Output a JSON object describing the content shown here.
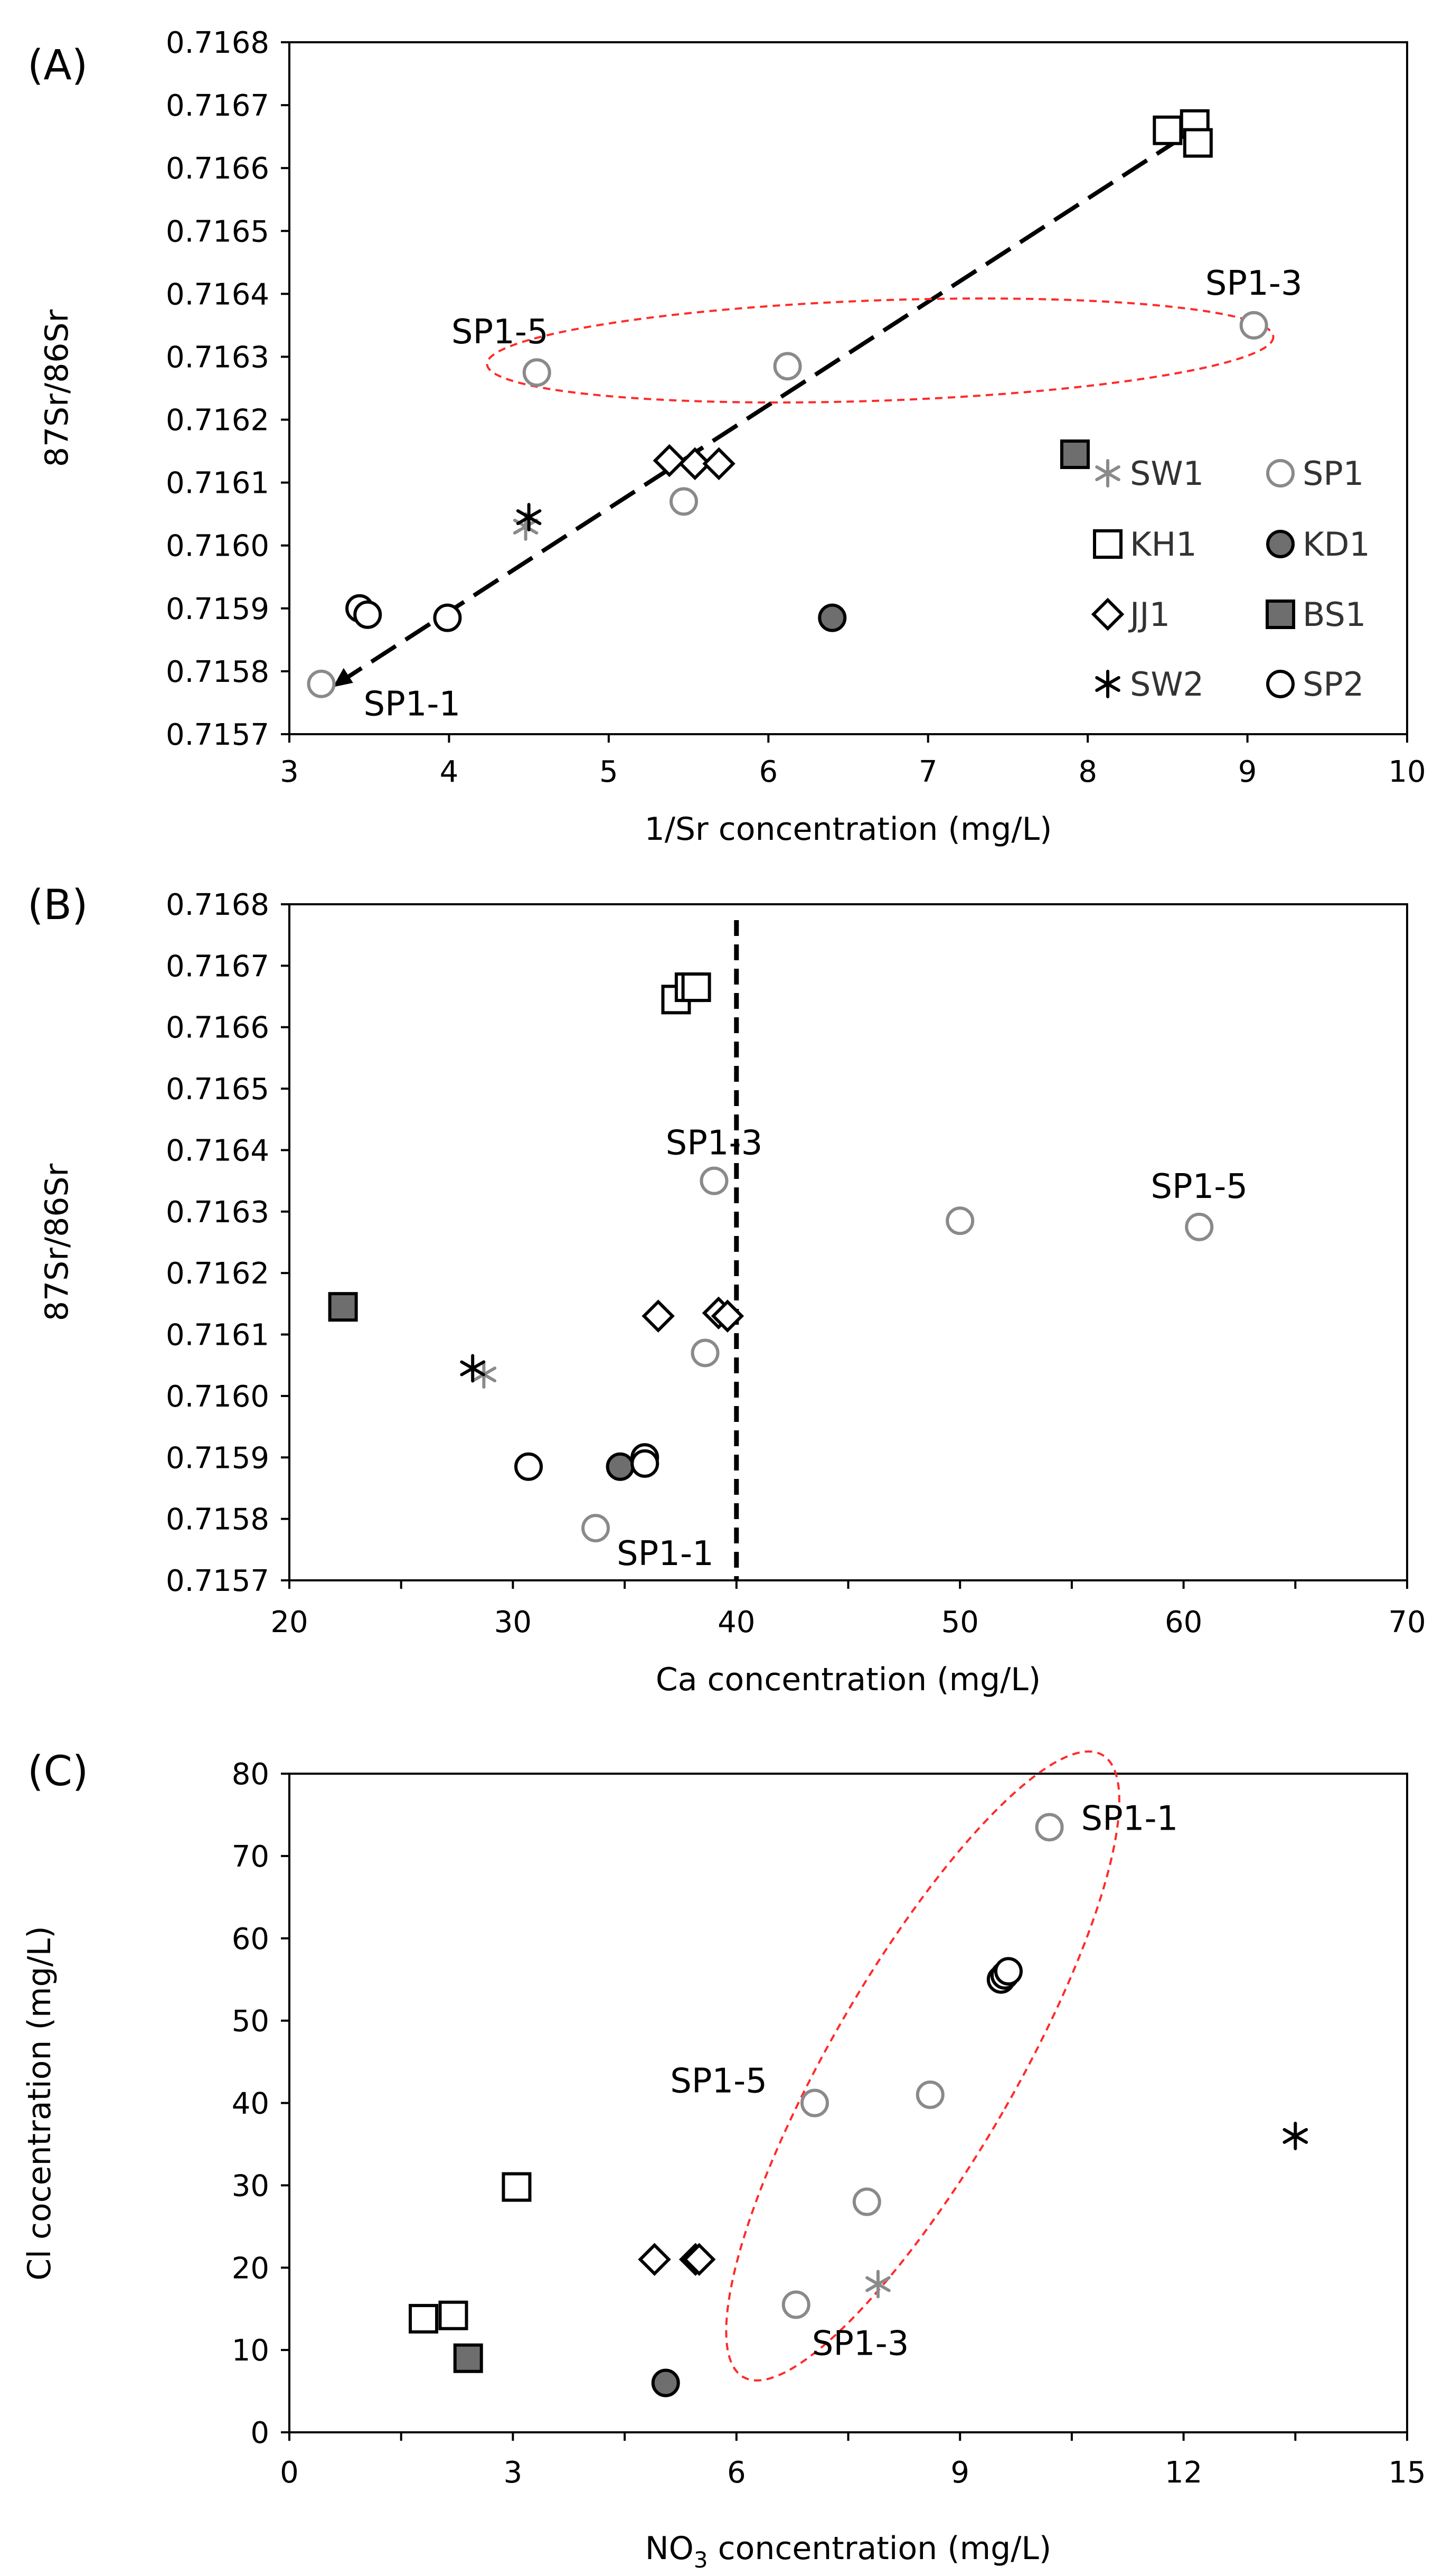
{
  "chart_data": [
    {
      "type": "scatter",
      "panel_label": "(A)",
      "xlabel": "1/Sr concentration (mg/L)",
      "ylabel": "87Sr/86Sr",
      "xlim": [
        3,
        10
      ],
      "ylim": [
        0.7157,
        0.7168
      ],
      "xticks": [
        "3",
        "4",
        "5",
        "6",
        "7",
        "8",
        "9",
        "10"
      ],
      "yticks": [
        "0.7157",
        "0.7158",
        "0.7159",
        "0.7160",
        "0.7161",
        "0.7162",
        "0.7163",
        "0.7164",
        "0.7165",
        "0.7166",
        "0.7167",
        "0.7168"
      ],
      "legend": [
        "SW1",
        "SP1",
        "KH1",
        "KD1",
        "JJ1",
        "BS1",
        "SW2",
        "SP2"
      ],
      "series": [
        {
          "name": "SW1",
          "points": [
            [
              4.48,
              0.71603
            ]
          ]
        },
        {
          "name": "SP1",
          "points": [
            [
              3.2,
              0.71578
            ],
            [
              4.55,
              0.716275
            ],
            [
              5.47,
              0.71607
            ],
            [
              6.12,
              0.716285
            ],
            [
              9.04,
              0.71635
            ]
          ]
        },
        {
          "name": "KH1",
          "points": [
            [
              8.5,
              0.71666
            ],
            [
              8.67,
              0.71667
            ],
            [
              8.69,
              0.71664
            ]
          ]
        },
        {
          "name": "KD1",
          "points": [
            [
              6.4,
              0.715885
            ]
          ]
        },
        {
          "name": "JJ1",
          "points": [
            [
              5.38,
              0.716135
            ],
            [
              5.54,
              0.71613
            ],
            [
              5.69,
              0.71613
            ]
          ]
        },
        {
          "name": "BS1",
          "points": [
            [
              7.92,
              0.716145
            ]
          ]
        },
        {
          "name": "SW2",
          "points": [
            [
              4.5,
              0.716045
            ]
          ]
        },
        {
          "name": "SP2",
          "points": [
            [
              3.44,
              0.7159
            ],
            [
              3.49,
              0.71589
            ],
            [
              3.99,
              0.715885
            ]
          ]
        }
      ],
      "trend_line": [
        [
          3.3,
          0.71578
        ],
        [
          8.6,
          0.71665
        ]
      ],
      "ellipse": {
        "center": [
          6.7,
          0.71631
        ],
        "note": "red dashed ellipse around SP1 points"
      },
      "annotations": [
        {
          "text": "SP1-5",
          "at": [
            4.55,
            0.716275
          ]
        },
        {
          "text": "SP1-3",
          "at": [
            9.04,
            0.71635
          ]
        },
        {
          "text": "SP1-1",
          "at": [
            3.2,
            0.71578
          ]
        }
      ]
    },
    {
      "type": "scatter",
      "panel_label": "(B)",
      "xlabel": "Ca concentration (mg/L)",
      "ylabel": "87Sr/86Sr",
      "xlim": [
        20,
        70
      ],
      "ylim": [
        0.7157,
        0.7168
      ],
      "xticks": [
        "20",
        "30",
        "40",
        "50",
        "60",
        "70"
      ],
      "yticks": [
        "0.7157",
        "0.7158",
        "0.7159",
        "0.7160",
        "0.7161",
        "0.7162",
        "0.7163",
        "0.7164",
        "0.7165",
        "0.7166",
        "0.7167",
        "0.7168"
      ],
      "series": [
        {
          "name": "SW1",
          "points": [
            [
              28.7,
              0.716035
            ]
          ]
        },
        {
          "name": "SP1",
          "points": [
            [
              33.7,
              0.715785
            ],
            [
              38.6,
              0.71607
            ],
            [
              39.0,
              0.71635
            ],
            [
              50.0,
              0.716285
            ],
            [
              60.7,
              0.716275
            ]
          ]
        },
        {
          "name": "KH1",
          "points": [
            [
              37.3,
              0.716645
            ],
            [
              37.9,
              0.716665
            ],
            [
              38.2,
              0.716665
            ]
          ]
        },
        {
          "name": "KD1",
          "points": [
            [
              34.8,
              0.715885
            ]
          ]
        },
        {
          "name": "JJ1",
          "points": [
            [
              36.5,
              0.71613
            ],
            [
              39.2,
              0.716135
            ],
            [
              39.6,
              0.71613
            ]
          ]
        },
        {
          "name": "BS1",
          "points": [
            [
              22.4,
              0.716145
            ]
          ]
        },
        {
          "name": "SW2",
          "points": [
            [
              28.2,
              0.716045
            ]
          ]
        },
        {
          "name": "SP2",
          "points": [
            [
              30.7,
              0.715885
            ],
            [
              35.9,
              0.7159
            ],
            [
              35.9,
              0.71589
            ]
          ]
        }
      ],
      "vertical_line_x": 40,
      "annotations": [
        {
          "text": "SP1-3",
          "at": [
            39.0,
            0.71635
          ]
        },
        {
          "text": "SP1-5",
          "at": [
            60.7,
            0.716275
          ]
        },
        {
          "text": "SP1-1",
          "at": [
            33.7,
            0.715785
          ]
        }
      ]
    },
    {
      "type": "scatter",
      "panel_label": "(C)",
      "xlabel_prefix": "NO",
      "xlabel_sub": "3",
      "xlabel_suffix": " concentration (mg/L)",
      "ylabel": "Cl cocentration (mg/L)",
      "xlim": [
        0,
        15
      ],
      "ylim": [
        0,
        80
      ],
      "xticks": [
        "0",
        "3",
        "6",
        "9",
        "12",
        "15"
      ],
      "yticks": [
        "0",
        "10",
        "20",
        "30",
        "40",
        "50",
        "60",
        "70",
        "80"
      ],
      "series": [
        {
          "name": "SW1",
          "points": [
            [
              7.9,
              18
            ]
          ]
        },
        {
          "name": "SP1",
          "points": [
            [
              6.8,
              15.5
            ],
            [
              7.05,
              40
            ],
            [
              7.75,
              28
            ],
            [
              8.6,
              41
            ],
            [
              10.2,
              73.5
            ]
          ]
        },
        {
          "name": "KH1",
          "points": [
            [
              1.8,
              13.8
            ],
            [
              2.2,
              14.2
            ],
            [
              3.05,
              29.8
            ]
          ]
        },
        {
          "name": "KD1",
          "points": [
            [
              5.05,
              6
            ]
          ]
        },
        {
          "name": "JJ1",
          "points": [
            [
              4.9,
              21
            ],
            [
              5.45,
              21
            ],
            [
              5.5,
              21
            ]
          ]
        },
        {
          "name": "BS1",
          "points": [
            [
              2.4,
              9
            ]
          ]
        },
        {
          "name": "SW2",
          "points": [
            [
              13.5,
              36
            ]
          ]
        },
        {
          "name": "SP2",
          "points": [
            [
              9.55,
              55
            ],
            [
              9.6,
              55.5
            ],
            [
              9.65,
              56
            ]
          ]
        }
      ],
      "ellipse": {
        "center": [
          8.5,
          44.5
        ],
        "note": "red dashed ellipse around SP1 points"
      },
      "annotations": [
        {
          "text": "SP1-1",
          "at": [
            10.2,
            73.5
          ]
        },
        {
          "text": "SP1-5",
          "at": [
            7.05,
            40
          ]
        },
        {
          "text": "SP1-3",
          "at": [
            6.8,
            15.5
          ]
        }
      ]
    }
  ],
  "colors": {
    "gray": "#8a8a8a",
    "fill_dark": "#6e6e6e",
    "black": "#000000",
    "ellipse": "#ff2a2a"
  }
}
